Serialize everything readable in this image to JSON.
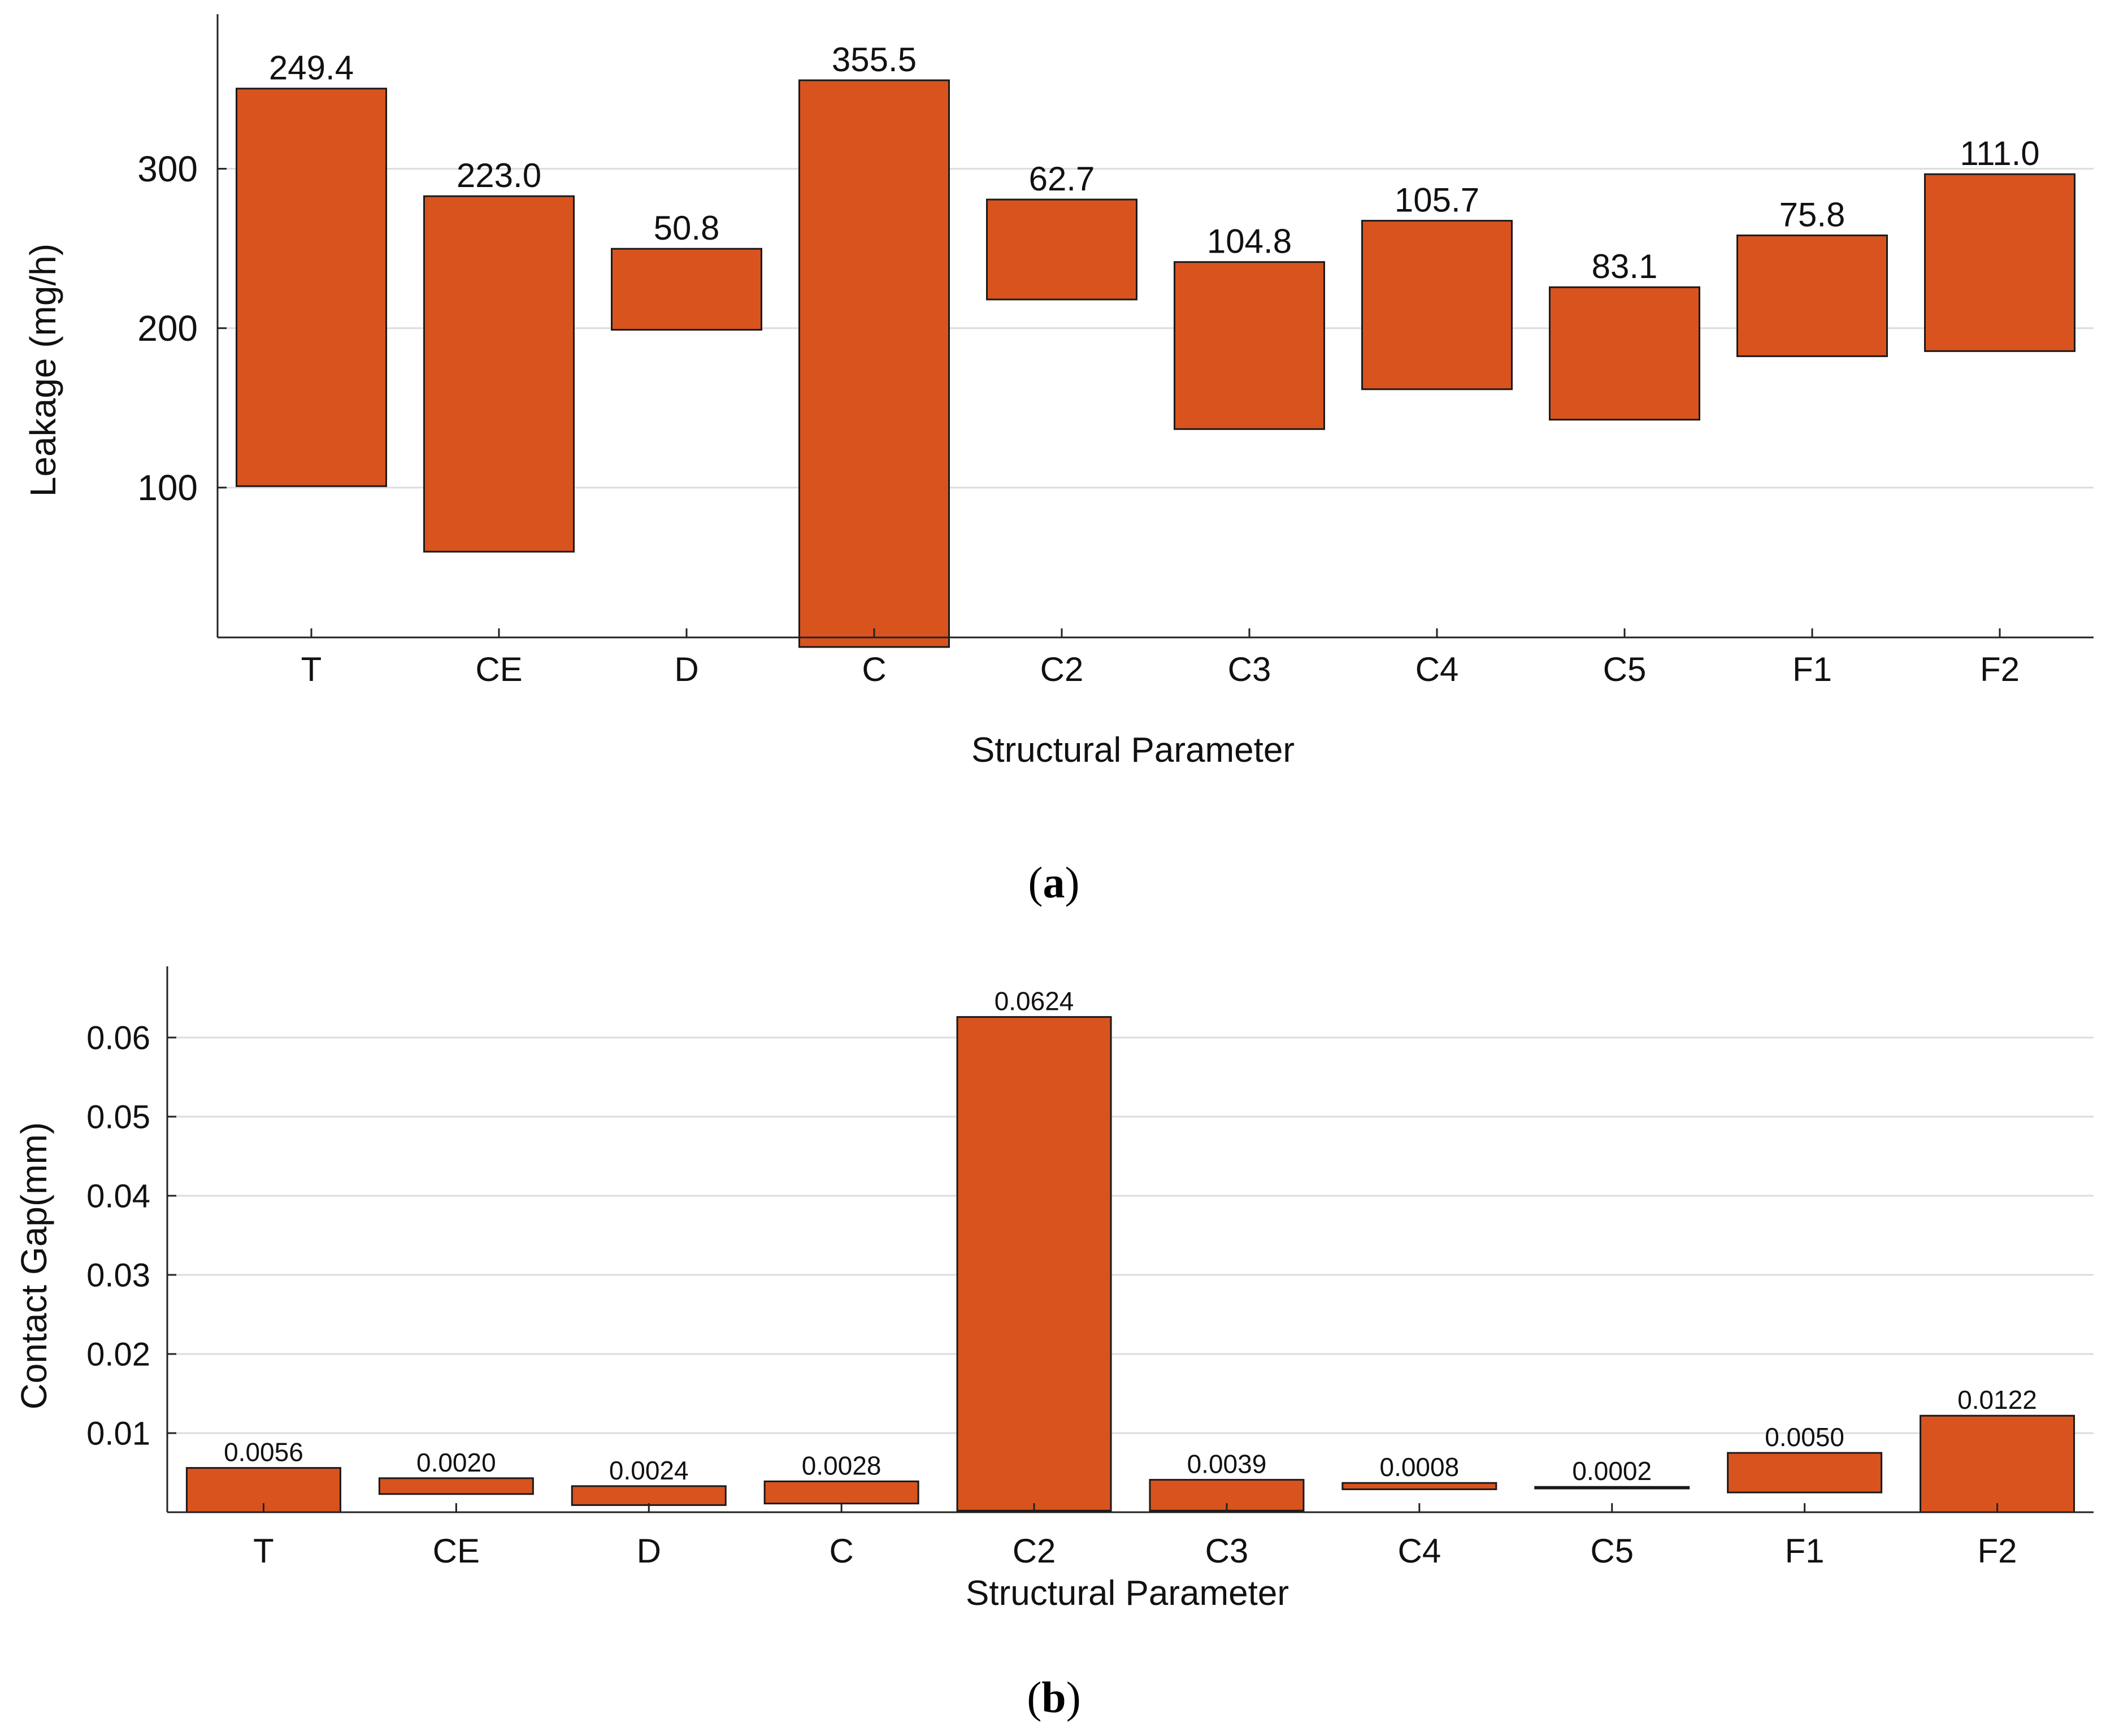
{
  "chart_data": [
    {
      "panel": "a",
      "type": "bar",
      "subtype": "floating",
      "caption_letter": "a",
      "xlabel": "Structural Parameter",
      "ylabel": "Leakage (mg/h)",
      "ylim": [
        6,
        397
      ],
      "yticks": [
        100,
        200,
        300
      ],
      "grid": true,
      "categories": [
        "T",
        "CE",
        "D",
        "C",
        "C2",
        "C3",
        "C4",
        "C5",
        "F1",
        "F2"
      ],
      "lows": [
        100.9,
        59.8,
        199.0,
        0.0,
        218.0,
        136.7,
        161.7,
        142.6,
        182.4,
        185.6
      ],
      "highs": [
        350.3,
        282.8,
        249.8,
        355.5,
        280.7,
        241.5,
        267.4,
        225.7,
        258.2,
        296.6
      ],
      "labels": [
        "249.4",
        "223.0",
        "50.8",
        "355.5",
        "62.7",
        "104.8",
        "105.7",
        "83.1",
        "75.8",
        "111.0"
      ],
      "color": "#D9531E"
    },
    {
      "panel": "b",
      "type": "bar",
      "subtype": "floating",
      "caption_letter": "b",
      "xlabel": "Structural Parameter",
      "ylabel": "Contact Gap(mm)",
      "ylim": [
        0,
        0.069
      ],
      "yticks": [
        0.01,
        0.02,
        0.03,
        0.04,
        0.05,
        0.06
      ],
      "ytick_labels": [
        "0.01",
        "0.02",
        "0.03",
        "0.04",
        "0.05",
        "0.06"
      ],
      "grid": true,
      "categories": [
        "T",
        "CE",
        "D",
        "C",
        "C2",
        "C3",
        "C4",
        "C5",
        "F1",
        "F2"
      ],
      "lows": [
        0.0,
        0.0023,
        0.0009,
        0.0011,
        0.0002,
        0.0002,
        0.0029,
        0.003,
        0.0025,
        0.0
      ],
      "highs": [
        0.0056,
        0.0043,
        0.0033,
        0.0039,
        0.0626,
        0.0041,
        0.0037,
        0.0032,
        0.0075,
        0.0122
      ],
      "labels": [
        "0.0056",
        "0.0020",
        "0.0024",
        "0.0028",
        "0.0624",
        "0.0039",
        "0.0008",
        "0.0002",
        "0.0050",
        "0.0122"
      ],
      "color": "#D9531E"
    }
  ]
}
